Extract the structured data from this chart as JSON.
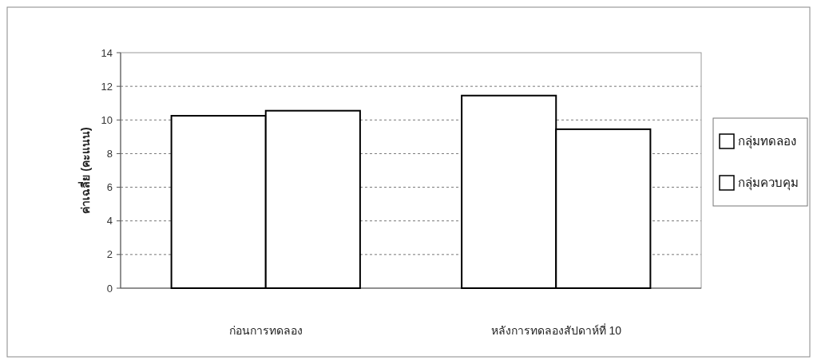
{
  "chart_data": {
    "type": "bar",
    "ylabel": "ค่าเฉลี่ย (คะแนน)",
    "categories": [
      "ก่อนการทดลอง",
      "หลังการทดลองสัปดาห์ที่ 10"
    ],
    "series": [
      {
        "name": "กลุ่มทดลอง",
        "color": "#ffffff",
        "values": [
          10.25,
          11.45
        ]
      },
      {
        "name": "กลุ่มควบคุม",
        "color": "#ffffff",
        "values": [
          10.55,
          9.45
        ]
      }
    ],
    "ylim": [
      0,
      14
    ],
    "yticks": [
      0,
      2,
      4,
      6,
      8,
      10,
      12,
      14
    ],
    "grid": "y",
    "legend": "right"
  }
}
